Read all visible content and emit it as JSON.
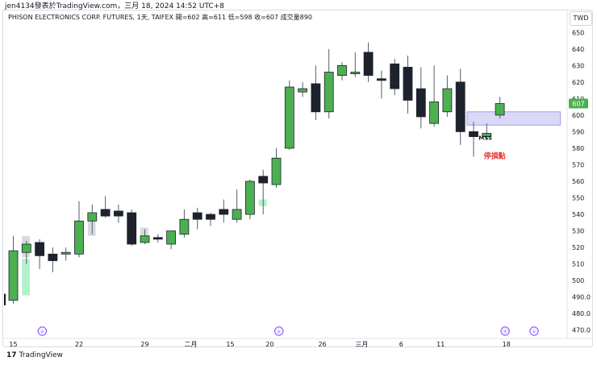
{
  "header": {
    "attribution": "jen4134發表於TradingView.com，三月 18, 2024 14:52 UTC+8",
    "symbol_line": "PHISON ELECTRONICS CORP. FUTURES, 1天, TAIFEX  開=602  高=611  低=598  收=607  成交量890",
    "currency": "TWD"
  },
  "footer": {
    "logo_glyph": "17",
    "brand": "TradingView"
  },
  "colors": {
    "up": "#4caf50",
    "down": "#1e222d",
    "grid": "#f0f3fa",
    "last_price_label": "#4caf50",
    "stop_label": "#e53935",
    "zone": "#b9b9f0",
    "fvg_up": "#a8efc2",
    "fvg_down": "#d3d6db",
    "event_icon": "#7c4dff"
  },
  "chart_data": {
    "type": "candlestick",
    "ylim": [
      465,
      655
    ],
    "y_ticks": [
      470,
      480,
      490,
      500,
      510,
      520,
      530,
      540,
      550,
      560,
      570,
      580,
      590,
      600,
      610,
      620,
      630,
      640,
      650
    ],
    "x_labels": [
      {
        "index": 0,
        "label": "15"
      },
      {
        "index": 5,
        "label": "22"
      },
      {
        "index": 10,
        "label": "29"
      },
      {
        "index": 13.5,
        "label": "二月"
      },
      {
        "index": 16.5,
        "label": "15"
      },
      {
        "index": 19.5,
        "label": "20"
      },
      {
        "index": 23.5,
        "label": "26"
      },
      {
        "index": 26.5,
        "label": "三月"
      },
      {
        "index": 29.5,
        "label": "6"
      },
      {
        "index": 32.5,
        "label": "11"
      },
      {
        "index": 37.5,
        "label": "18"
      }
    ],
    "candles": [
      {
        "o": 488,
        "h": 527,
        "l": 486,
        "c": 518
      },
      {
        "o": 517,
        "h": 524,
        "l": 510,
        "c": 522
      },
      {
        "o": 523,
        "h": 525,
        "l": 507,
        "c": 515
      },
      {
        "o": 516,
        "h": 520,
        "l": 505,
        "c": 512
      },
      {
        "o": 516,
        "h": 520,
        "l": 512,
        "c": 517
      },
      {
        "o": 516,
        "h": 548,
        "l": 514,
        "c": 536
      },
      {
        "o": 536,
        "h": 546,
        "l": 528,
        "c": 541
      },
      {
        "o": 543,
        "h": 551,
        "l": 538,
        "c": 539
      },
      {
        "o": 542,
        "h": 546,
        "l": 535,
        "c": 539
      },
      {
        "o": 541,
        "h": 543,
        "l": 521,
        "c": 522
      },
      {
        "o": 523,
        "h": 531,
        "l": 522,
        "c": 527
      },
      {
        "o": 526,
        "h": 528,
        "l": 523,
        "c": 525
      },
      {
        "o": 522,
        "h": 530,
        "l": 519,
        "c": 530
      },
      {
        "o": 528,
        "h": 543,
        "l": 526,
        "c": 537
      },
      {
        "o": 541,
        "h": 544,
        "l": 531,
        "c": 537
      },
      {
        "o": 540,
        "h": 541,
        "l": 533,
        "c": 537
      },
      {
        "o": 543,
        "h": 549,
        "l": 535,
        "c": 540
      },
      {
        "o": 537,
        "h": 555,
        "l": 535,
        "c": 543
      },
      {
        "o": 540,
        "h": 561,
        "l": 537,
        "c": 560
      },
      {
        "o": 563,
        "h": 567,
        "l": 540,
        "c": 559
      },
      {
        "o": 558,
        "h": 580,
        "l": 556,
        "c": 574
      },
      {
        "o": 580,
        "h": 621,
        "l": 579,
        "c": 617
      },
      {
        "o": 614,
        "h": 620,
        "l": 611,
        "c": 616
      },
      {
        "o": 619,
        "h": 630,
        "l": 597,
        "c": 602
      },
      {
        "o": 602,
        "h": 640,
        "l": 598,
        "c": 626
      },
      {
        "o": 624,
        "h": 632,
        "l": 621,
        "c": 630
      },
      {
        "o": 625,
        "h": 638,
        "l": 623,
        "c": 626
      },
      {
        "o": 638,
        "h": 644,
        "l": 620,
        "c": 624
      },
      {
        "o": 622,
        "h": 627,
        "l": 610,
        "c": 621
      },
      {
        "o": 631,
        "h": 634,
        "l": 612,
        "c": 616
      },
      {
        "o": 629,
        "h": 636,
        "l": 601,
        "c": 609
      },
      {
        "o": 616,
        "h": 629,
        "l": 592,
        "c": 599
      },
      {
        "o": 595,
        "h": 630,
        "l": 593,
        "c": 608
      },
      {
        "o": 602,
        "h": 624,
        "l": 599,
        "c": 616
      },
      {
        "o": 620,
        "h": 628,
        "l": 582,
        "c": 590
      },
      {
        "o": 590,
        "h": 596,
        "l": 575,
        "c": 587
      },
      {
        "o": 587,
        "h": 595,
        "l": 585,
        "c": 589
      },
      {
        "o": 600,
        "h": 611,
        "l": 598,
        "c": 607
      }
    ],
    "last_price": 607,
    "zones": [
      {
        "from_index": 34.5,
        "to_index": 41.6,
        "top": 602,
        "bottom": 594,
        "kind": "supply_demand"
      }
    ],
    "gaps": [
      {
        "from_index": 1,
        "to_index": 1.6,
        "top": 513,
        "bottom": 491,
        "kind": "up"
      },
      {
        "from_index": 1,
        "to_index": 1.6,
        "top": 527,
        "bottom": 514,
        "kind": "down"
      },
      {
        "from_index": 6,
        "to_index": 6.6,
        "top": 541,
        "bottom": 527,
        "kind": "down"
      },
      {
        "from_index": 10,
        "to_index": 10.6,
        "top": 532,
        "bottom": 527,
        "kind": "down"
      },
      {
        "from_index": 19,
        "to_index": 19.6,
        "top": 549,
        "bottom": 545,
        "kind": "up"
      }
    ],
    "annotations": [
      {
        "text": "MSS",
        "index": 35.9,
        "price": 585,
        "color": "#131722"
      },
      {
        "text": "停損點",
        "index": 36.6,
        "price": 574,
        "color": "#e53935"
      }
    ],
    "event_markers": [
      {
        "index": 2.2,
        "kind": "dividend"
      },
      {
        "index": 20.2,
        "kind": "dividend"
      },
      {
        "index": 37.4,
        "kind": "earnings"
      },
      {
        "index": 39.6,
        "kind": "dividend"
      }
    ]
  }
}
